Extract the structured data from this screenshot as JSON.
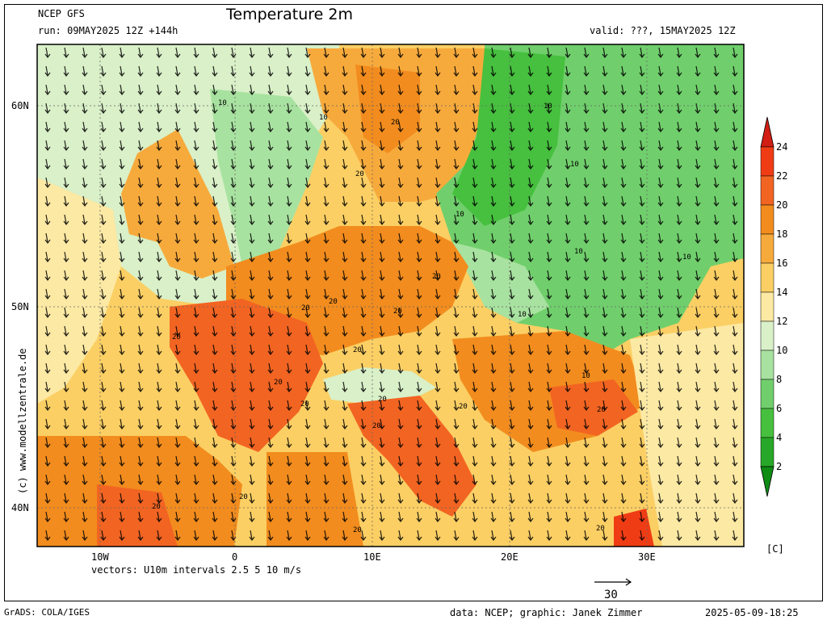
{
  "header": {
    "model": "NCEP GFS",
    "run": "run: 09MAY2025 12Z +144h",
    "title": "Temperature 2m",
    "valid": "valid: ???, 15MAY2025 12Z"
  },
  "axes": {
    "lat_labels": [
      "60N",
      "50N",
      "40N"
    ],
    "lon_labels": [
      "10W",
      "0",
      "10E",
      "20E",
      "30E"
    ]
  },
  "contour_labels": [
    "10",
    "10",
    "20",
    "20",
    "10",
    "10",
    "20",
    "20",
    "20",
    "20",
    "20",
    "20",
    "20",
    "20",
    "20",
    "20",
    "10",
    "10",
    "10",
    "20",
    "20",
    "20",
    "20",
    "20",
    "20",
    "10",
    "10"
  ],
  "colorbar": {
    "ticks": [
      "24",
      "22",
      "20",
      "18",
      "16",
      "14",
      "12",
      "10",
      "8",
      "6",
      "4",
      "2"
    ],
    "colors": [
      "#f03c14",
      "#f26422",
      "#f28c1e",
      "#f7aa3c",
      "#fbcf64",
      "#fce9a4",
      "#d9f0c8",
      "#a8e2a0",
      "#70cf6c",
      "#46c03e",
      "#28a828",
      "#15921a"
    ],
    "top_arrow_color": "#d21e14",
    "bottom_arrow_color": "#0e8c14",
    "unit": "[C]"
  },
  "vectors_caption": "vectors: U10m intervals 2.5 5 10 m/s",
  "reference_vector_value": "30",
  "side_credit": "(c) www.modellzentrale.de",
  "footer": {
    "grads": "GrADS: COLA/IGES",
    "credits": "data: NCEP; graphic: Janek Zimmer",
    "timestamp": "2025-05-09-18:25"
  }
}
